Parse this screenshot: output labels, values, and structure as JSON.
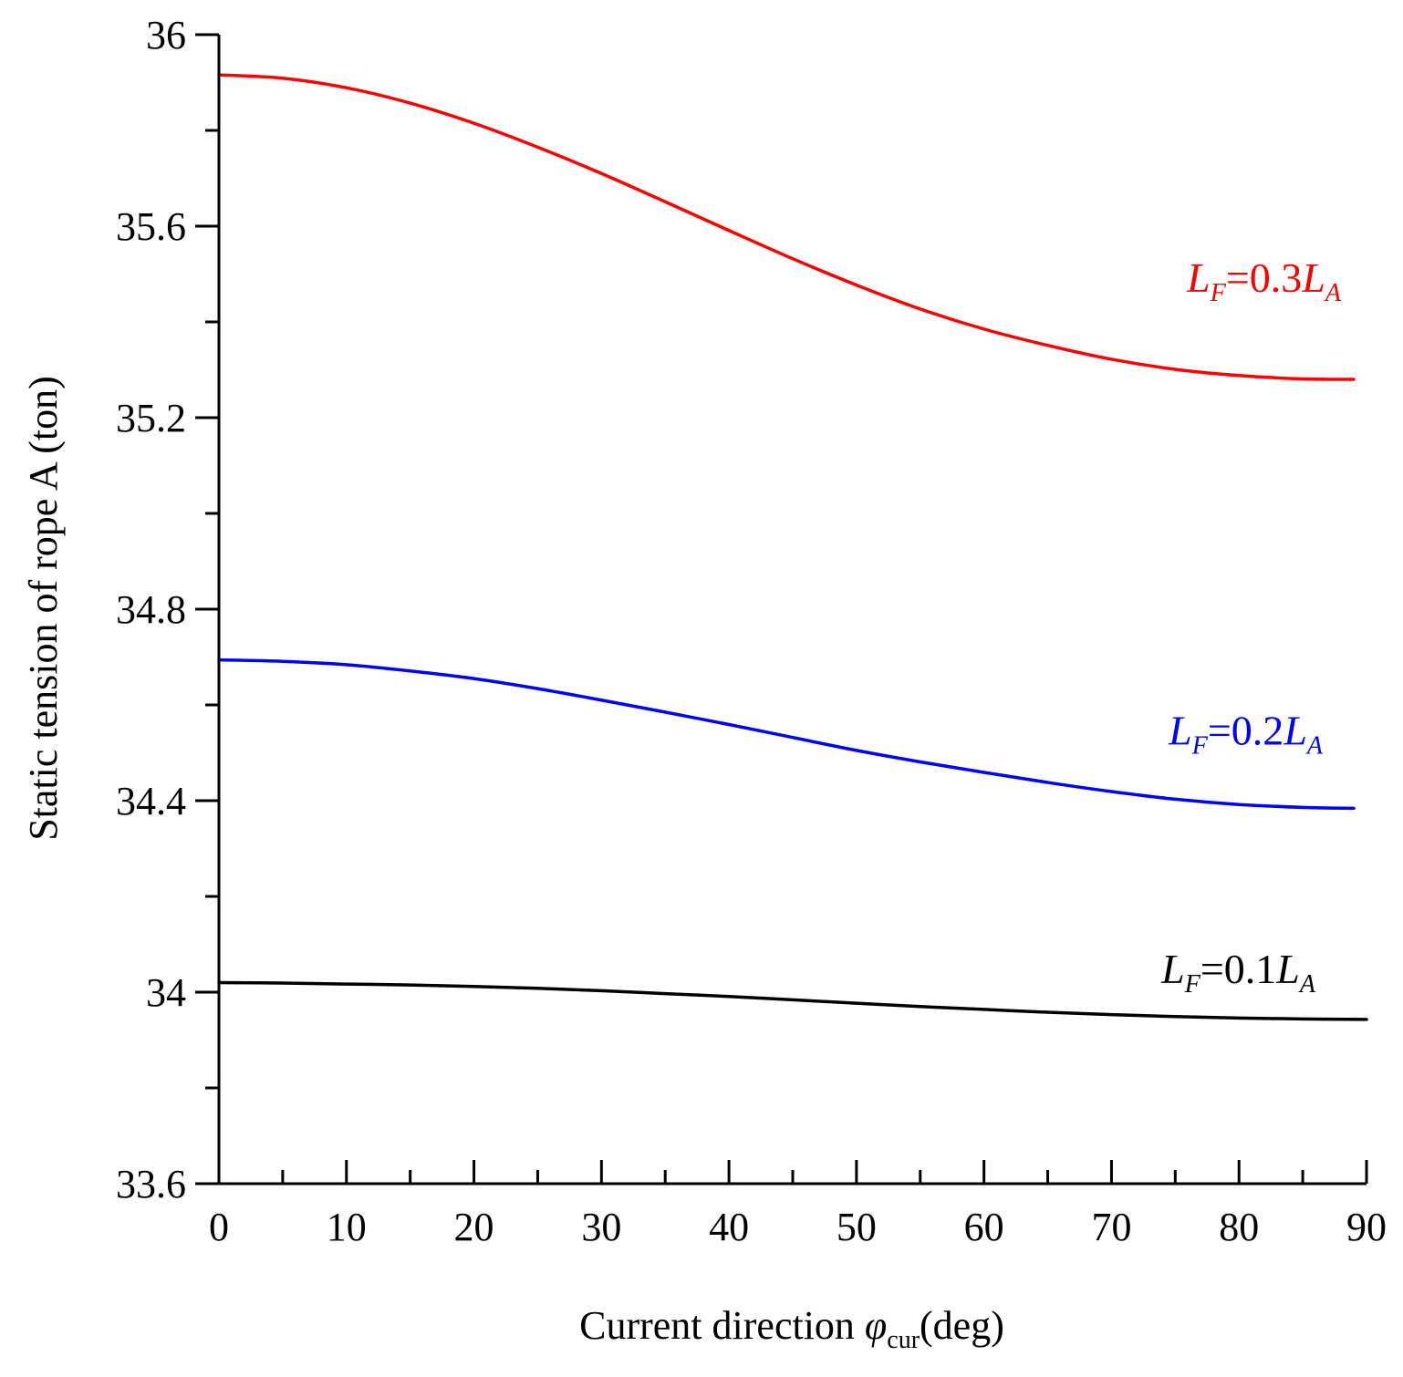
{
  "chart_data": {
    "type": "line",
    "xlabel": {
      "prefix": "Current direction ",
      "symbol": "φ",
      "subscript": "cur",
      "suffix": "(deg)"
    },
    "ylabel": "Static tension of rope A (ton)",
    "xlim": [
      0,
      90
    ],
    "ylim": [
      33.6,
      36
    ],
    "xticks": [
      "0",
      "10",
      "20",
      "30",
      "40",
      "50",
      "60",
      "70",
      "80",
      "90"
    ],
    "yticks": [
      "33.6",
      "34",
      "34.4",
      "34.8",
      "35.2",
      "35.6",
      "36"
    ],
    "x_minor_step": 5,
    "y_minor_step": 0.2,
    "grid": false,
    "legend": "none",
    "x": [
      0,
      5,
      10,
      15,
      20,
      25,
      30,
      35,
      40,
      45,
      50,
      55,
      60,
      65,
      70,
      75,
      80,
      85,
      89
    ],
    "series": [
      {
        "label": {
          "lhs": "L",
          "lhs_sub": "F",
          "mid": "=0.3",
          "rhs": "L",
          "rhs_sub": "A"
        },
        "color": "#ff0000",
        "x": [
          0,
          5,
          10,
          15,
          20,
          25,
          30,
          35,
          40,
          45,
          50,
          55,
          60,
          65,
          70,
          75,
          80,
          85,
          89
        ],
        "values": [
          35.916,
          35.909,
          35.889,
          35.857,
          35.815,
          35.765,
          35.71,
          35.651,
          35.591,
          35.532,
          35.477,
          35.427,
          35.385,
          35.351,
          35.322,
          35.301,
          35.288,
          35.281,
          35.28
        ]
      },
      {
        "label": {
          "lhs": "L",
          "lhs_sub": "F",
          "mid": "=0.2",
          "rhs": "L",
          "rhs_sub": "A"
        },
        "color": "#0000ff",
        "x": [
          0,
          5,
          10,
          15,
          20,
          25,
          30,
          35,
          40,
          45,
          50,
          55,
          60,
          65,
          70,
          75,
          80,
          85,
          89
        ],
        "values": [
          34.694,
          34.691,
          34.684,
          34.671,
          34.655,
          34.634,
          34.61,
          34.585,
          34.559,
          34.532,
          34.505,
          34.481,
          34.459,
          34.438,
          34.419,
          34.403,
          34.392,
          34.386,
          34.384
        ]
      },
      {
        "label": {
          "lhs": "L",
          "lhs_sub": "F",
          "mid": "=0.1",
          "rhs": "L",
          "rhs_sub": "A"
        },
        "color": "#000000",
        "x": [
          0,
          5,
          10,
          15,
          20,
          25,
          30,
          35,
          40,
          45,
          50,
          55,
          60,
          65,
          70,
          75,
          80,
          85,
          90
        ],
        "values": [
          34.02,
          34.019,
          34.017,
          34.015,
          34.012,
          34.008,
          34.003,
          33.997,
          33.991,
          33.984,
          33.977,
          33.97,
          33.964,
          33.958,
          33.953,
          33.949,
          33.946,
          33.944,
          33.943
        ]
      }
    ]
  }
}
